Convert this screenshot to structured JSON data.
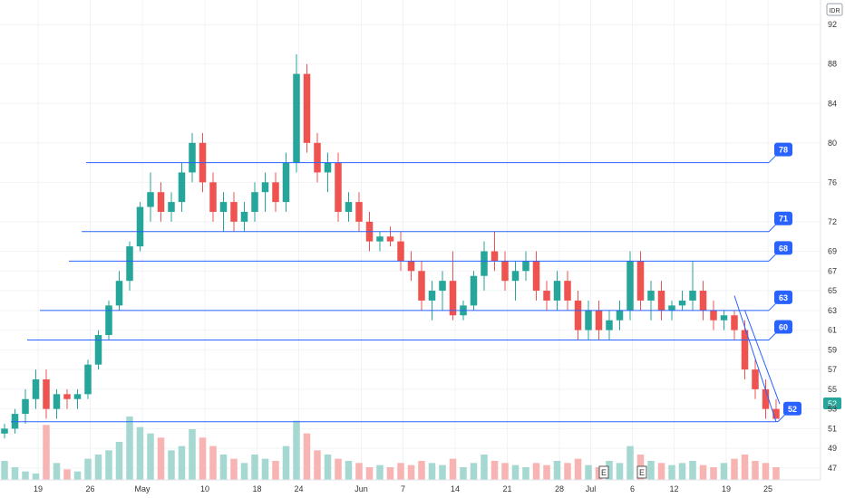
{
  "chart_data": {
    "type": "candlestick",
    "currency": "IDR",
    "y_axis": {
      "ylim": [
        45.8,
        94.5
      ],
      "ticks": [
        "92",
        "88",
        "84",
        "80",
        "76",
        "72",
        "69",
        "67",
        "65",
        "63",
        "61",
        "59",
        "57",
        "55",
        "53",
        "51",
        "49",
        "47"
      ]
    },
    "x_axis": {
      "ticks": [
        {
          "label": "19",
          "x": 0
        },
        {
          "label": "26",
          "x": 5
        },
        {
          "label": "May",
          "x": 10
        },
        {
          "label": "10",
          "x": 16
        },
        {
          "label": "18",
          "x": 21
        },
        {
          "label": "24",
          "x": 25
        },
        {
          "label": "Jun",
          "x": 31
        },
        {
          "label": "7",
          "x": 35
        },
        {
          "label": "14",
          "x": 40
        },
        {
          "label": "21",
          "x": 45
        },
        {
          "label": "28",
          "x": 50
        },
        {
          "label": "Jul",
          "x": 53
        },
        {
          "label": "6",
          "x": 57
        },
        {
          "label": "12",
          "x": 61
        },
        {
          "label": "19",
          "x": 66
        },
        {
          "label": "25",
          "x": 70
        }
      ]
    },
    "last_price": "52",
    "colors": {
      "up": "#26a69a",
      "down": "#ef5350",
      "level": "#2962ff",
      "vol_up": "#a6d8d2",
      "vol_down": "#f7b4b3"
    },
    "candles": [
      [
        50.5,
        51.5,
        50,
        51
      ],
      [
        51,
        53,
        50.5,
        52.5
      ],
      [
        52.5,
        55,
        51.5,
        54
      ],
      [
        54,
        57,
        53,
        56
      ],
      [
        56,
        57,
        52,
        53
      ],
      [
        53,
        55,
        52,
        54.5
      ],
      [
        54.5,
        55,
        53,
        54
      ],
      [
        54,
        55,
        53,
        54.5
      ],
      [
        54.5,
        58,
        54,
        57.5
      ],
      [
        57.5,
        61,
        57,
        60.5
      ],
      [
        60.5,
        64,
        60,
        63.5
      ],
      [
        63.5,
        67,
        63,
        66
      ],
      [
        66,
        70,
        65,
        69.5
      ],
      [
        69.5,
        74,
        69,
        73.5
      ],
      [
        73.5,
        77,
        72,
        75
      ],
      [
        75,
        76,
        72,
        73
      ],
      [
        73,
        75,
        72,
        74
      ],
      [
        74,
        78,
        73,
        77
      ],
      [
        77,
        81,
        76,
        80
      ],
      [
        80,
        81,
        75,
        76
      ],
      [
        76,
        77,
        72,
        73
      ],
      [
        73,
        75,
        71,
        74
      ],
      [
        74,
        75,
        71,
        72
      ],
      [
        72,
        74,
        71,
        73
      ],
      [
        73,
        76,
        72,
        75
      ],
      [
        75,
        77,
        73,
        76
      ],
      [
        76,
        77,
        73,
        74
      ],
      [
        74,
        79,
        73,
        78
      ],
      [
        78,
        89,
        77,
        87
      ],
      [
        87,
        88,
        79,
        80
      ],
      [
        80,
        81,
        76,
        77
      ],
      [
        77,
        79,
        75,
        78
      ],
      [
        78,
        79,
        72,
        73
      ],
      [
        73,
        75,
        72,
        74
      ],
      [
        74,
        75,
        71,
        72
      ],
      [
        72,
        73,
        69,
        70
      ],
      [
        70,
        71,
        69,
        70.5
      ],
      [
        70.5,
        71.5,
        69.5,
        70
      ],
      [
        70,
        71,
        67,
        68
      ],
      [
        68,
        69,
        66,
        67
      ],
      [
        67,
        68,
        63,
        64
      ],
      [
        64,
        66,
        62,
        65
      ],
      [
        65,
        67,
        63,
        66
      ],
      [
        66,
        69,
        62,
        62.5
      ],
      [
        62.5,
        64,
        62,
        63.5
      ],
      [
        63.5,
        67,
        63,
        66.5
      ],
      [
        66.5,
        70,
        65,
        69
      ],
      [
        69,
        71,
        67,
        68
      ],
      [
        68,
        69,
        65,
        66
      ],
      [
        66,
        68,
        64,
        67
      ],
      [
        67,
        69,
        66,
        68
      ],
      [
        68,
        69,
        64,
        65
      ],
      [
        65,
        66,
        63,
        64
      ],
      [
        64,
        67,
        63,
        66
      ],
      [
        66,
        67,
        63,
        64
      ],
      [
        64,
        65,
        60,
        61
      ],
      [
        61,
        64,
        60,
        63
      ],
      [
        63,
        64,
        60,
        61
      ],
      [
        61,
        63,
        60,
        62
      ],
      [
        62,
        64,
        61,
        63
      ],
      [
        63,
        69,
        62,
        68
      ],
      [
        68,
        69,
        63,
        64
      ],
      [
        64,
        66,
        62,
        65
      ],
      [
        65,
        66,
        62,
        63
      ],
      [
        63,
        64,
        62,
        63.5
      ],
      [
        63.5,
        65,
        63,
        64
      ],
      [
        64,
        68,
        63,
        65
      ],
      [
        65,
        66,
        62,
        63
      ],
      [
        63,
        64,
        61,
        62
      ],
      [
        62,
        63,
        61,
        62.5
      ],
      [
        62.5,
        63,
        60,
        61
      ],
      [
        61,
        62,
        56,
        57
      ],
      [
        57,
        58,
        54,
        55
      ],
      [
        55,
        56,
        52,
        53
      ],
      [
        53,
        54,
        52,
        52
      ]
    ],
    "volumes": [
      9,
      6,
      4,
      3,
      26,
      8,
      5,
      4,
      10,
      12,
      14,
      18,
      30,
      25,
      22,
      20,
      14,
      16,
      24,
      20,
      16,
      12,
      10,
      8,
      12,
      10,
      9,
      16,
      28,
      22,
      14,
      12,
      10,
      9,
      8,
      6,
      7,
      6,
      8,
      7,
      9,
      8,
      7,
      10,
      6,
      8,
      12,
      9,
      8,
      7,
      6,
      8,
      7,
      9,
      8,
      10,
      7,
      6,
      9,
      8,
      16,
      12,
      9,
      8,
      7,
      8,
      9,
      7,
      6,
      8,
      10,
      12,
      9,
      8,
      6
    ],
    "levels": [
      {
        "label": "78",
        "value": 78
      },
      {
        "label": "71",
        "value": 71
      },
      {
        "label": "68",
        "value": 68
      },
      {
        "label": "63",
        "value": 63
      },
      {
        "label": "60",
        "value": 60
      },
      {
        "label": "52",
        "value": 51.7
      }
    ],
    "earnings_markers": [
      "E",
      "E"
    ]
  }
}
